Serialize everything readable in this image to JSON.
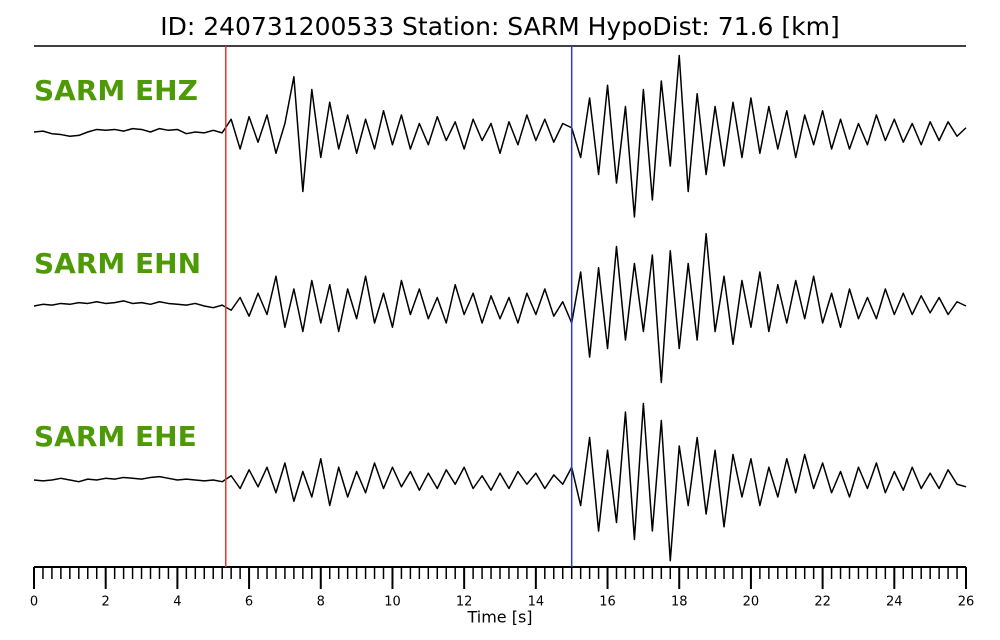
{
  "chart_data": {
    "type": "line",
    "title": "ID: 240731200533   Station: SARM   HypoDist:    71.6 [km]",
    "xlabel": "Time [s]",
    "xlim": [
      0,
      26
    ],
    "xticks": [
      0,
      2,
      4,
      6,
      8,
      10,
      12,
      14,
      16,
      18,
      20,
      22,
      24,
      26
    ],
    "minor_tick_step": 0.25,
    "ylim": [
      -1,
      1
    ],
    "label_color": "#4e9a06",
    "markers": [
      {
        "x": 5.35,
        "color": "#e8332c"
      },
      {
        "x": 15,
        "color": "#2a3ad6"
      }
    ],
    "x": [
      0,
      0.25,
      0.5,
      0.75,
      1,
      1.25,
      1.5,
      1.75,
      2,
      2.25,
      2.5,
      2.75,
      3,
      3.25,
      3.5,
      3.75,
      4,
      4.25,
      4.5,
      4.75,
      5,
      5.25,
      5.5,
      5.75,
      6,
      6.25,
      6.5,
      6.75,
      7,
      7.25,
      7.5,
      7.75,
      8,
      8.25,
      8.5,
      8.75,
      9,
      9.25,
      9.5,
      9.75,
      10,
      10.25,
      10.5,
      10.75,
      11,
      11.25,
      11.5,
      11.75,
      12,
      12.25,
      12.5,
      12.75,
      13,
      13.25,
      13.5,
      13.75,
      14,
      14.25,
      14.5,
      14.75,
      15,
      15.25,
      15.5,
      15.75,
      16,
      16.25,
      16.5,
      16.75,
      17,
      17.25,
      17.5,
      17.75,
      18,
      18.25,
      18.5,
      18.75,
      19,
      19.25,
      19.5,
      19.75,
      20,
      20.25,
      20.5,
      20.75,
      21,
      21.25,
      21.5,
      21.75,
      22,
      22.25,
      22.5,
      22.75,
      23,
      23.25,
      23.5,
      23.75,
      24,
      24.25,
      24.5,
      24.75,
      25,
      25.25,
      25.5,
      25.75,
      26
    ],
    "series": [
      {
        "name": "SARM EHZ",
        "color": "#000000",
        "values": [
          0,
          0.01,
          -0.02,
          -0.03,
          -0.05,
          -0.04,
          0.0,
          0.03,
          0.02,
          0.03,
          0.01,
          0.04,
          0.03,
          0.0,
          0.04,
          0.02,
          0.03,
          -0.02,
          0.0,
          -0.01,
          0.02,
          -0.01,
          0.15,
          -0.2,
          0.18,
          -0.12,
          0.2,
          -0.25,
          0.1,
          0.65,
          -0.7,
          0.5,
          -0.3,
          0.35,
          -0.2,
          0.2,
          -0.25,
          0.15,
          -0.2,
          0.25,
          -0.15,
          0.2,
          -0.2,
          0.1,
          -0.15,
          0.18,
          -0.1,
          0.12,
          -0.2,
          0.15,
          -0.1,
          0.1,
          -0.25,
          0.12,
          -0.15,
          0.2,
          -0.1,
          0.15,
          -0.12,
          0.1,
          0.05,
          -0.3,
          0.4,
          -0.5,
          0.55,
          -0.6,
          0.3,
          -1.0,
          0.5,
          -0.8,
          0.6,
          -0.4,
          0.9,
          -0.7,
          0.45,
          -0.5,
          0.3,
          -0.4,
          0.35,
          -0.3,
          0.4,
          -0.25,
          0.3,
          -0.2,
          0.25,
          -0.3,
          0.2,
          -0.15,
          0.25,
          -0.2,
          0.15,
          -0.2,
          0.1,
          -0.15,
          0.2,
          -0.1,
          0.15,
          -0.12,
          0.1,
          -0.15,
          0.12,
          -0.1,
          0.12,
          -0.05,
          0.05
        ]
      },
      {
        "name": "SARM EHN",
        "color": "#000000",
        "values": [
          0,
          0.02,
          0.01,
          0.03,
          0.02,
          0.04,
          0.03,
          0.05,
          0.03,
          0.04,
          0.06,
          0.03,
          0.04,
          0.02,
          0.05,
          0.03,
          0.02,
          0.01,
          0.03,
          0.0,
          -0.02,
          0.01,
          -0.05,
          0.1,
          -0.12,
          0.15,
          -0.1,
          0.35,
          -0.25,
          0.2,
          -0.3,
          0.3,
          -0.2,
          0.25,
          -0.3,
          0.2,
          -0.15,
          0.35,
          -0.2,
          0.15,
          -0.25,
          0.3,
          -0.1,
          0.2,
          -0.15,
          0.1,
          -0.2,
          0.25,
          -0.1,
          0.15,
          -0.2,
          0.12,
          -0.15,
          0.1,
          -0.2,
          0.15,
          -0.1,
          0.2,
          -0.12,
          0.05,
          -0.2,
          0.4,
          -0.6,
          0.45,
          -0.5,
          0.7,
          -0.4,
          0.5,
          -0.3,
          0.6,
          -0.9,
          0.65,
          -0.5,
          0.5,
          -0.4,
          0.85,
          -0.3,
          0.35,
          -0.45,
          0.3,
          -0.25,
          0.4,
          -0.3,
          0.25,
          -0.2,
          0.3,
          -0.15,
          0.35,
          -0.2,
          0.15,
          -0.25,
          0.2,
          -0.15,
          0.1,
          -0.15,
          0.2,
          -0.1,
          0.15,
          -0.1,
          0.12,
          -0.08,
          0.1,
          -0.1,
          0.05,
          0.0
        ]
      },
      {
        "name": "SARM EHE",
        "color": "#000000",
        "values": [
          0,
          -0.01,
          0.0,
          0.02,
          0.0,
          -0.02,
          0.01,
          0.0,
          0.02,
          0.01,
          0.03,
          0.02,
          0.01,
          0.03,
          0.04,
          0.02,
          0.0,
          0.01,
          0.0,
          -0.01,
          0.0,
          -0.02,
          0.05,
          -0.1,
          0.12,
          -0.08,
          0.15,
          -0.15,
          0.2,
          -0.25,
          0.1,
          -0.2,
          0.25,
          -0.3,
          0.15,
          -0.2,
          0.1,
          -0.15,
          0.2,
          -0.1,
          0.15,
          -0.08,
          0.1,
          -0.12,
          0.08,
          -0.1,
          0.12,
          -0.05,
          0.15,
          -0.1,
          0.05,
          -0.12,
          0.08,
          -0.1,
          0.1,
          -0.05,
          0.08,
          -0.1,
          0.06,
          -0.05,
          0.15,
          -0.3,
          0.5,
          -0.6,
          0.35,
          -0.5,
          0.8,
          -0.7,
          0.9,
          -0.6,
          0.7,
          -0.95,
          0.4,
          -0.3,
          0.5,
          -0.4,
          0.35,
          -0.55,
          0.3,
          -0.2,
          0.25,
          -0.3,
          0.15,
          -0.2,
          0.25,
          -0.15,
          0.3,
          -0.1,
          0.2,
          -0.15,
          0.1,
          -0.2,
          0.15,
          -0.1,
          0.2,
          -0.15,
          0.1,
          -0.12,
          0.15,
          -0.1,
          0.08,
          -0.1,
          0.12,
          -0.05,
          -0.08
        ]
      }
    ]
  }
}
